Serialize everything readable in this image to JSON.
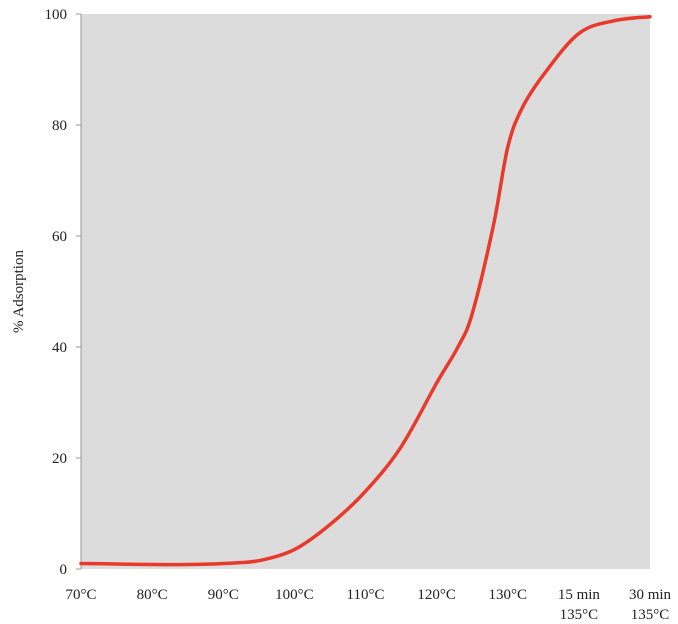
{
  "chart_data": {
    "type": "line",
    "title": "",
    "xlabel": "",
    "ylabel": "% Adsorption",
    "ylim": [
      0,
      100
    ],
    "yticks": [
      0,
      20,
      40,
      60,
      80,
      100
    ],
    "categories": [
      "70°C",
      "80°C",
      "90°C",
      "100°C",
      "110°C",
      "120°C",
      "130°C",
      [
        "15 min",
        "135°C"
      ],
      [
        "30 min",
        "135°C"
      ]
    ],
    "grid": false,
    "plot_background": "#dcdcdc",
    "series": [
      {
        "color": "#e8392b",
        "x": [
          0,
          0.5,
          1,
          1.5,
          2,
          2.5,
          3,
          3.5,
          4,
          4.5,
          5,
          5.3,
          5.5,
          5.8,
          6,
          6.2,
          6.5,
          7,
          7.5,
          8
        ],
        "values": [
          1,
          0.9,
          0.8,
          0.8,
          1,
          1.5,
          3.5,
          8,
          14,
          22,
          33.5,
          40,
          46,
          62,
          76,
          83,
          89,
          96.5,
          98.8,
          99.5
        ]
      }
    ]
  }
}
